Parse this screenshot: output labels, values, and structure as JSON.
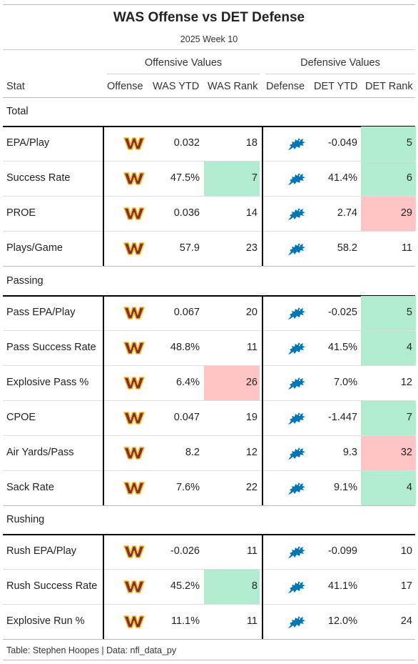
{
  "title": "WAS Offense vs DET Defense",
  "subtitle": "2025 Week 10",
  "spanners": {
    "offense": "Offensive Values",
    "defense": "Defensive Values"
  },
  "columns": [
    "Stat",
    "Offense",
    "WAS YTD",
    "WAS Rank",
    "Defense",
    "DET YTD",
    "DET Rank"
  ],
  "colors": {
    "good": "#b2ecd0",
    "bad": "#ffc5c5",
    "was_logo": "#773141",
    "was_logo_trim": "#ffb612",
    "det_logo": "#0076b6"
  },
  "icons": {
    "offense": "commanders-logo-icon",
    "defense": "lions-logo-icon"
  },
  "sections": [
    {
      "name": "Total",
      "rows": [
        {
          "stat": "EPA/Play",
          "was_ytd": "0.032",
          "was_rank": "18",
          "was_hl": "",
          "det_ytd": "-0.049",
          "det_rank": "5",
          "det_hl": "good"
        },
        {
          "stat": "Success Rate",
          "was_ytd": "47.5%",
          "was_rank": "7",
          "was_hl": "good",
          "det_ytd": "41.4%",
          "det_rank": "6",
          "det_hl": "good"
        },
        {
          "stat": "PROE",
          "was_ytd": "0.036",
          "was_rank": "14",
          "was_hl": "",
          "det_ytd": "2.74",
          "det_rank": "29",
          "det_hl": "bad"
        },
        {
          "stat": "Plays/Game",
          "was_ytd": "57.9",
          "was_rank": "23",
          "was_hl": "",
          "det_ytd": "58.2",
          "det_rank": "11",
          "det_hl": ""
        }
      ]
    },
    {
      "name": "Passing",
      "rows": [
        {
          "stat": "Pass EPA/Play",
          "was_ytd": "0.067",
          "was_rank": "20",
          "was_hl": "",
          "det_ytd": "-0.025",
          "det_rank": "5",
          "det_hl": "good"
        },
        {
          "stat": "Pass Success Rate",
          "was_ytd": "48.8%",
          "was_rank": "11",
          "was_hl": "",
          "det_ytd": "41.5%",
          "det_rank": "4",
          "det_hl": "good"
        },
        {
          "stat": "Explosive Pass %",
          "was_ytd": "6.4%",
          "was_rank": "26",
          "was_hl": "bad",
          "det_ytd": "7.0%",
          "det_rank": "12",
          "det_hl": ""
        },
        {
          "stat": "CPOE",
          "was_ytd": "0.047",
          "was_rank": "19",
          "was_hl": "",
          "det_ytd": "-1.447",
          "det_rank": "7",
          "det_hl": "good"
        },
        {
          "stat": "Air Yards/Pass",
          "was_ytd": "8.2",
          "was_rank": "12",
          "was_hl": "",
          "det_ytd": "9.3",
          "det_rank": "32",
          "det_hl": "bad"
        },
        {
          "stat": "Sack Rate",
          "was_ytd": "7.6%",
          "was_rank": "22",
          "was_hl": "",
          "det_ytd": "9.1%",
          "det_rank": "4",
          "det_hl": "good"
        }
      ]
    },
    {
      "name": "Rushing",
      "rows": [
        {
          "stat": "Rush EPA/Play",
          "was_ytd": "-0.026",
          "was_rank": "11",
          "was_hl": "",
          "det_ytd": "-0.099",
          "det_rank": "10",
          "det_hl": ""
        },
        {
          "stat": "Rush Success Rate",
          "was_ytd": "45.2%",
          "was_rank": "8",
          "was_hl": "good",
          "det_ytd": "41.1%",
          "det_rank": "17",
          "det_hl": ""
        },
        {
          "stat": "Explosive Run %",
          "was_ytd": "11.1%",
          "was_rank": "11",
          "was_hl": "",
          "det_ytd": "12.0%",
          "det_rank": "24",
          "det_hl": ""
        }
      ]
    }
  ],
  "footer": "Table: Stephen Hoopes | Data: nfl_data_py"
}
